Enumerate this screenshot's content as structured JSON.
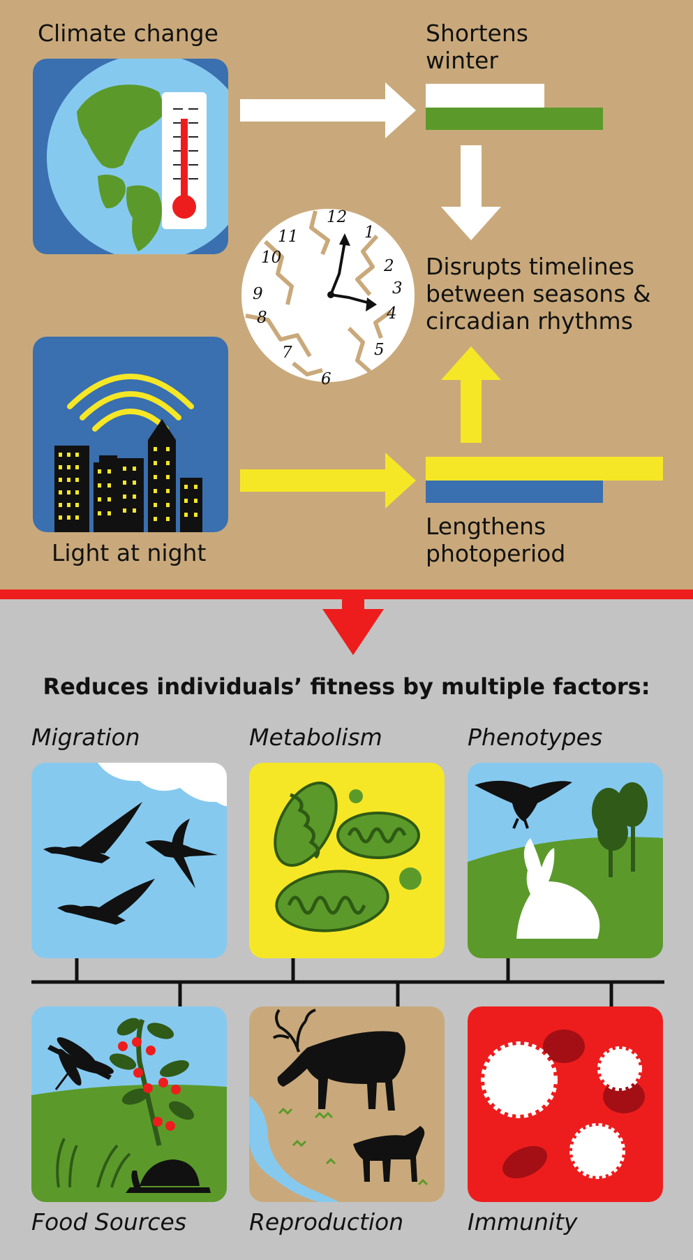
{
  "top": {
    "climate_change": "Climate change",
    "shortens_winter_1": "Shortens",
    "shortens_winter_2": "winter",
    "disrupts_1": "Disrupts timelines",
    "disrupts_2": "between seasons &",
    "disrupts_3": "circadian rhythms",
    "light_at_night": "Light at night",
    "lengthens_1": "Lengthens",
    "lengthens_2": "photoperiod"
  },
  "clock": {
    "numerals": [
      "12",
      "1",
      "2",
      "3",
      "4",
      "5",
      "6",
      "7",
      "8",
      "9",
      "10",
      "11"
    ]
  },
  "bottom": {
    "heading": "Reduces individuals’ fitness by multiple factors:",
    "factors": [
      {
        "label": "Migration"
      },
      {
        "label": "Metabolism"
      },
      {
        "label": "Phenotypes"
      },
      {
        "label": "Food Sources"
      },
      {
        "label": "Reproduction"
      },
      {
        "label": "Immunity"
      }
    ]
  },
  "colors": {
    "tan": "#c9a97b",
    "gray": "#c3c3c3",
    "blue": "#3a6fb0",
    "sky": "#86c9ef",
    "green": "#5b9a2a",
    "yellow": "#f6e726",
    "red": "#ee1d1d",
    "white": "#ffffff"
  },
  "icons": [
    "globe-thermometer-icon",
    "city-light-icon",
    "broken-clock-icon",
    "geese-icon",
    "mitochondria-icon",
    "eagle-hare-icon",
    "dragonfly-berries-snail-icon",
    "caribou-icon",
    "blood-cells-icon"
  ]
}
